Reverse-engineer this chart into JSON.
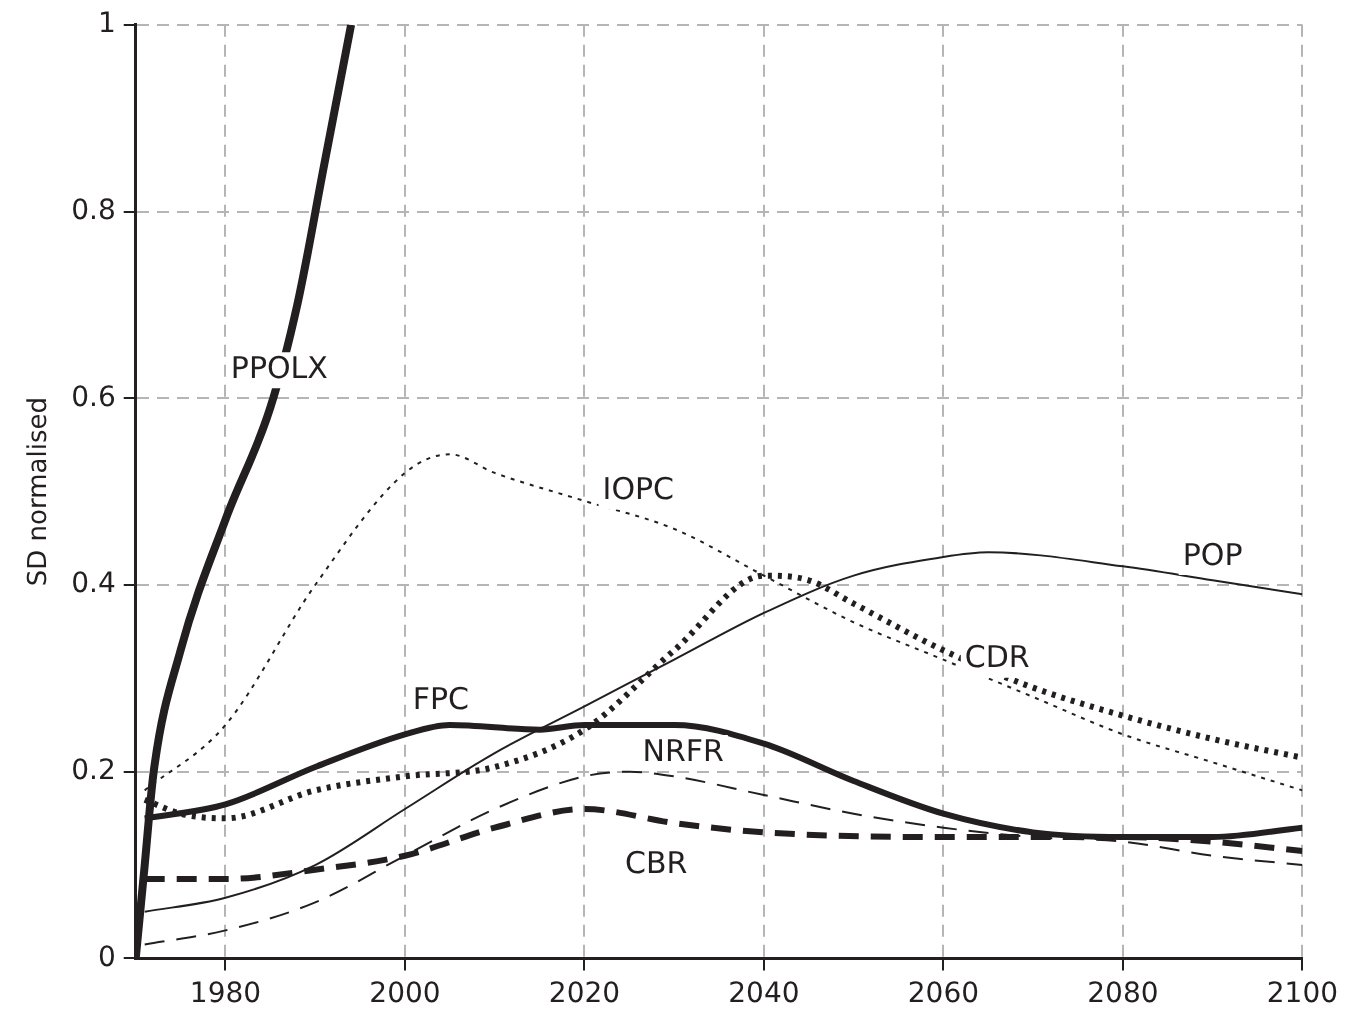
{
  "chart_data": {
    "type": "line",
    "ylabel": "SD normalised",
    "xlim": [
      1970,
      2100
    ],
    "ylim": [
      0,
      1
    ],
    "xticks": [
      1980,
      2000,
      2020,
      2040,
      2060,
      2080,
      2100
    ],
    "yticks": [
      {
        "value": 0,
        "label": "0"
      },
      {
        "value": 0.2,
        "label": "0.2"
      },
      {
        "value": 0.4,
        "label": "0.4"
      },
      {
        "value": 0.6,
        "label": "0.6"
      },
      {
        "value": 0.8,
        "label": "0.8"
      },
      {
        "value": 1,
        "label": "1"
      }
    ],
    "grid": true,
    "legend": false,
    "marker": "none",
    "series": [
      {
        "name": "PPOLX",
        "color": "#231f20",
        "line_style": "solid",
        "x": [
          1970,
          1971,
          1972,
          1975,
          1980,
          1985,
          1988,
          1991,
          1994
        ],
        "values": [
          0,
          0.1,
          0.2,
          0.33,
          0.47,
          0.59,
          0.7,
          0.85,
          1.0
        ]
      },
      {
        "name": "IOPC",
        "color": "#231f20",
        "line_style": "dotted",
        "x": [
          1971,
          1980,
          1990,
          2000,
          2005,
          2010,
          2020,
          2030,
          2040,
          2050,
          2060,
          2070,
          2080,
          2090,
          2100
        ],
        "values": [
          0.18,
          0.25,
          0.4,
          0.52,
          0.54,
          0.52,
          0.49,
          0.46,
          0.41,
          0.36,
          0.32,
          0.28,
          0.24,
          0.21,
          0.18
        ]
      },
      {
        "name": "CDR",
        "color": "#231f20",
        "line_style": "dotted",
        "x": [
          1971,
          1975,
          1980,
          1990,
          2000,
          2010,
          2020,
          2030,
          2040,
          2045,
          2050,
          2060,
          2070,
          2080,
          2090,
          2100
        ],
        "values": [
          0.17,
          0.155,
          0.15,
          0.18,
          0.195,
          0.205,
          0.245,
          0.33,
          0.41,
          0.405,
          0.38,
          0.33,
          0.29,
          0.26,
          0.235,
          0.215
        ]
      },
      {
        "name": "POP",
        "color": "#231f20",
        "line_style": "solid",
        "x": [
          1971,
          1980,
          1990,
          2000,
          2010,
          2020,
          2030,
          2040,
          2050,
          2060,
          2065,
          2080,
          2090,
          2100
        ],
        "values": [
          0.05,
          0.065,
          0.1,
          0.16,
          0.22,
          0.27,
          0.32,
          0.37,
          0.41,
          0.43,
          0.435,
          0.42,
          0.405,
          0.39
        ]
      },
      {
        "name": "FPC",
        "color": "#231f20",
        "line_style": "solid",
        "x": [
          1971,
          1980,
          1990,
          2000,
          2005,
          2015,
          2020,
          2030,
          2040,
          2050,
          2060,
          2070,
          2080,
          2090,
          2100
        ],
        "values": [
          0.15,
          0.165,
          0.205,
          0.24,
          0.25,
          0.245,
          0.25,
          0.25,
          0.23,
          0.19,
          0.155,
          0.135,
          0.13,
          0.13,
          0.14
        ]
      },
      {
        "name": "NRFR",
        "color": "#231f20",
        "line_style": "dashed",
        "x": [
          1971,
          1980,
          1990,
          2000,
          2010,
          2020,
          2025,
          2030,
          2040,
          2050,
          2060,
          2070,
          2080,
          2090,
          2100
        ],
        "values": [
          0.015,
          0.03,
          0.06,
          0.11,
          0.16,
          0.195,
          0.2,
          0.195,
          0.175,
          0.155,
          0.14,
          0.13,
          0.125,
          0.11,
          0.1
        ]
      },
      {
        "name": "CBR",
        "color": "#231f20",
        "line_style": "dashed",
        "x": [
          1971,
          1980,
          1990,
          2000,
          2010,
          2020,
          2030,
          2040,
          2060,
          2070,
          2080,
          2090,
          2100
        ],
        "values": [
          0.085,
          0.085,
          0.095,
          0.11,
          0.14,
          0.16,
          0.145,
          0.135,
          0.13,
          0.13,
          0.13,
          0.125,
          0.115
        ]
      }
    ]
  }
}
